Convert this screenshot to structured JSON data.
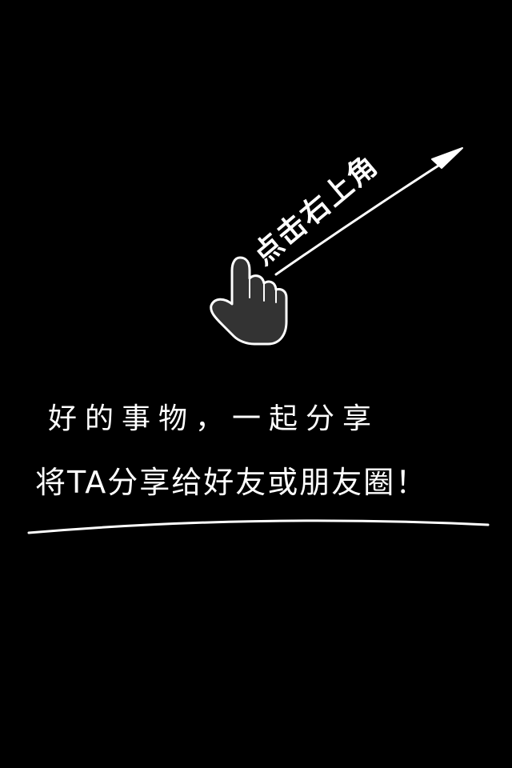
{
  "hint": {
    "text": "点击右上角"
  },
  "message": {
    "line1": "好的事物，一起分享",
    "line2": "将TA分享给好友或朋友圈！"
  },
  "colors": {
    "background": "#000000",
    "foreground": "#ffffff",
    "hand_fill": "#333333"
  },
  "icons": {
    "hand": "pointing-hand-icon",
    "arrow": "arrow-up-right-icon"
  }
}
